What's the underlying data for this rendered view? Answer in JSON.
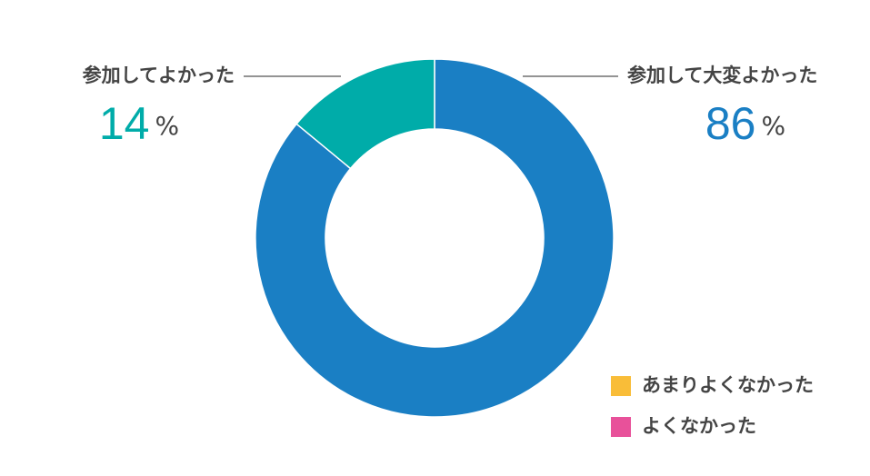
{
  "chart_data": {
    "type": "donut",
    "categories": [
      "参加して大変よかった",
      "参加してよかった",
      "あまりよくなかった",
      "よくなかった"
    ],
    "values": [
      86,
      14,
      0,
      0
    ],
    "value_labels": [
      "86%",
      "14%",
      null,
      null
    ],
    "colors": [
      "#1a7fc4",
      "#00aca9",
      "#f9bd38",
      "#e8519a"
    ]
  }
}
